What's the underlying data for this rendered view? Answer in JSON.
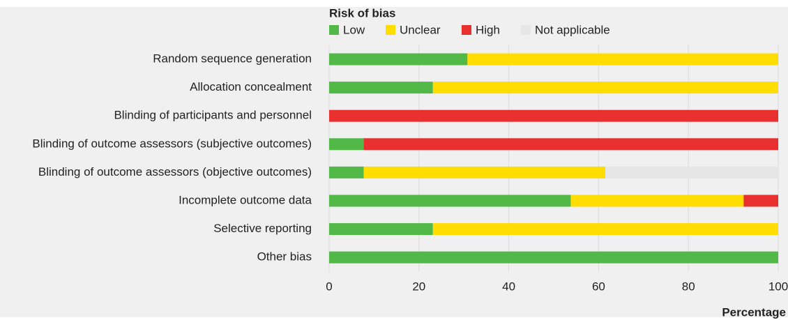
{
  "chart_data": {
    "type": "stacked-bar",
    "orientation": "horizontal",
    "legend_title": "Risk of bias",
    "x_label": "Percentage",
    "categories": [
      "Random sequence generation",
      "Allocation concealment",
      "Blinding of participants and personnel",
      "Blinding of outcome assessors (subjective outcomes)",
      "Blinding of outcome assessors (objective outcomes)",
      "Incomplete outcome data",
      "Selective reporting",
      "Other bias"
    ],
    "series": [
      {
        "name": "Low",
        "color": "#52b848",
        "values": [
          30.8,
          23.1,
          0,
          7.7,
          7.7,
          53.8,
          23.1,
          100
        ]
      },
      {
        "name": "Unclear",
        "color": "#ffdd00",
        "values": [
          69.2,
          76.9,
          0,
          0,
          53.8,
          38.5,
          76.9,
          0
        ]
      },
      {
        "name": "High",
        "color": "#e8312f",
        "values": [
          0,
          0,
          100,
          92.3,
          0,
          7.7,
          0,
          0
        ]
      },
      {
        "name": "Not applicable",
        "color": "#e6e6e6",
        "values": [
          0,
          0,
          0,
          0,
          38.5,
          0,
          0,
          0
        ]
      }
    ],
    "xlim": [
      0,
      100
    ],
    "xticks": [
      0,
      20,
      40,
      60,
      80,
      100
    ],
    "grid": true
  }
}
